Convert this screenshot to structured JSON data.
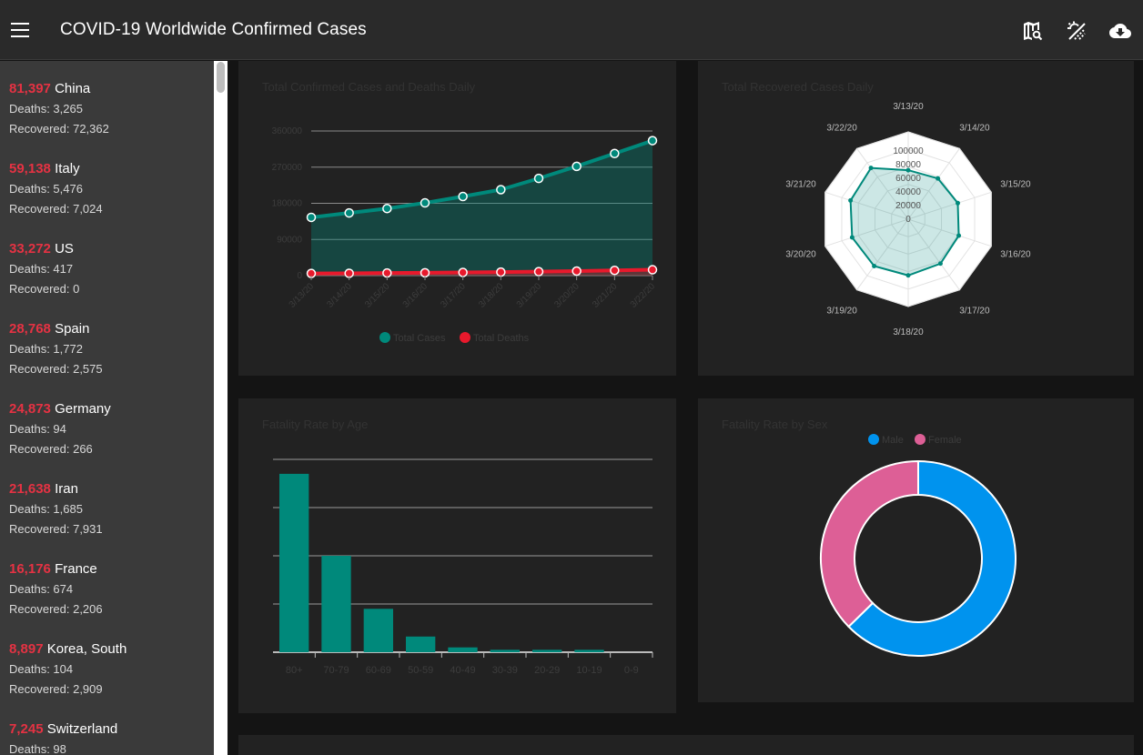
{
  "app": {
    "title": "COVID-19 Worldwide Confirmed Cases"
  },
  "toolbar": {
    "icons": [
      "map-search-icon",
      "weather-icon",
      "cloud-download-icon"
    ]
  },
  "countries": [
    {
      "cases": "81,397",
      "name": "China",
      "deaths": "Deaths: 3,265",
      "recovered": "Recovered: 72,362"
    },
    {
      "cases": "59,138",
      "name": "Italy",
      "deaths": "Deaths: 5,476",
      "recovered": "Recovered: 7,024"
    },
    {
      "cases": "33,272",
      "name": "US",
      "deaths": "Deaths: 417",
      "recovered": "Recovered: 0"
    },
    {
      "cases": "28,768",
      "name": "Spain",
      "deaths": "Deaths: 1,772",
      "recovered": "Recovered: 2,575"
    },
    {
      "cases": "24,873",
      "name": "Germany",
      "deaths": "Deaths: 94",
      "recovered": "Recovered: 266"
    },
    {
      "cases": "21,638",
      "name": "Iran",
      "deaths": "Deaths: 1,685",
      "recovered": "Recovered: 7,931"
    },
    {
      "cases": "16,176",
      "name": "France",
      "deaths": "Deaths: 674",
      "recovered": "Recovered: 2,206"
    },
    {
      "cases": "8,897",
      "name": "Korea, South",
      "deaths": "Deaths: 104",
      "recovered": "Recovered: 2,909"
    },
    {
      "cases": "7,245",
      "name": "Switzerland",
      "deaths": "Deaths: 98",
      "recovered": ""
    }
  ],
  "colors": {
    "teal": "#00897b",
    "red": "#e8192c",
    "blue": "#0093ee",
    "pink": "#dd5f96"
  },
  "chart_data": [
    {
      "type": "line",
      "title": "Total Confirmed Cases and Deaths Daily",
      "categories": [
        "3/13/20",
        "3/14/20",
        "3/15/20",
        "3/16/20",
        "3/17/20",
        "3/18/20",
        "3/19/20",
        "3/20/20",
        "3/21/20",
        "3/22/20"
      ],
      "series": [
        {
          "name": "Total Cases",
          "values": [
            145000,
            156000,
            167000,
            181000,
            197000,
            214000,
            242000,
            272000,
            304000,
            336000
          ]
        },
        {
          "name": "Total Deaths",
          "values": [
            5400,
            5800,
            6500,
            7100,
            7900,
            8800,
            9900,
            11300,
            13000,
            14600
          ]
        }
      ],
      "y_ticks": [
        "360000",
        "270000",
        "180000",
        "90000",
        "0"
      ],
      "ylim": [
        0,
        360000
      ],
      "grid": true,
      "legend": "bottom"
    },
    {
      "type": "radar",
      "title": "Total Recovered Cases Daily",
      "categories": [
        "3/13/20",
        "3/14/20",
        "3/15/20",
        "3/16/20",
        "3/17/20",
        "3/18/20",
        "3/19/20",
        "3/20/20",
        "3/21/20",
        "3/22/20"
      ],
      "values": [
        72000,
        74000,
        76500,
        78000,
        80500,
        82500,
        85000,
        86500,
        89000,
        93000
      ],
      "r_ticks": [
        "0",
        "20000",
        "40000",
        "60000",
        "80000",
        "100000"
      ],
      "rlim": [
        0,
        100000
      ]
    },
    {
      "type": "bar",
      "title": "Fatality Rate by Age",
      "categories": [
        "80+",
        "70-79",
        "60-69",
        "50-59",
        "40-49",
        "30-39",
        "20-29",
        "10-19",
        "0-9"
      ],
      "values": [
        14.8,
        8.0,
        3.6,
        1.3,
        0.4,
        0.2,
        0.2,
        0.2,
        0
      ],
      "ylim": [
        0,
        16
      ],
      "grid": true
    },
    {
      "type": "pie",
      "title": "Fatality Rate by Sex",
      "labels": [
        "Male",
        "Female"
      ],
      "values": [
        4.7,
        2.8
      ],
      "legend": "top"
    }
  ]
}
